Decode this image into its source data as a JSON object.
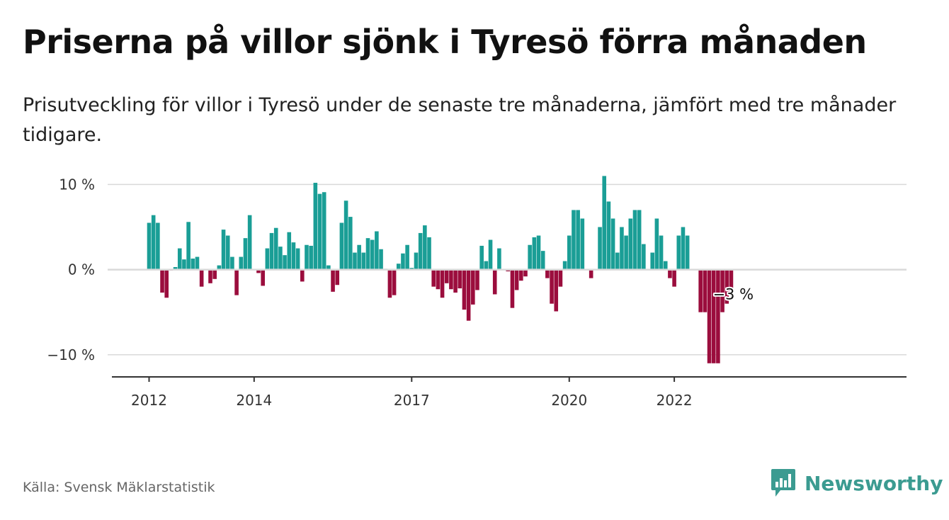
{
  "header": {
    "title": "Priserna på villor sjönk i Tyresö förra månaden",
    "subtitle": "Prisutveckling för villor i Tyresö under de senaste tre månaderna, jämfört med tre månader tidigare."
  },
  "footer": {
    "source": "Källa: Svensk Mäklarstatistik",
    "brand": "Newsworthy",
    "brand_icon": "bar-chart-logo-icon"
  },
  "colors": {
    "positive": "#1a9e96",
    "negative": "#9b0d3d",
    "grid": "#d9d9d9",
    "axis": "#333333",
    "brand": "#3b9b91"
  },
  "chart_data": {
    "type": "bar",
    "title": "",
    "xlabel": "",
    "ylabel": "",
    "ylim": [
      -12.6,
      11.2
    ],
    "yticks": [
      {
        "value": 10,
        "label": "10 %"
      },
      {
        "value": 0,
        "label": "0 %"
      },
      {
        "value": -10,
        "label": "−10 %"
      }
    ],
    "xticks": [
      {
        "value": "2012-01",
        "label": "2012"
      },
      {
        "value": "2014-01",
        "label": "2014"
      },
      {
        "value": "2017-01",
        "label": "2017"
      },
      {
        "value": "2020-01",
        "label": "2020"
      },
      {
        "value": "2022-01",
        "label": "2022"
      }
    ],
    "grid": true,
    "x_start": "2012-01",
    "series": [
      {
        "values": [
          5.5,
          6.4,
          5.5,
          -2.7,
          -3.3,
          -0.1,
          0.3,
          2.5,
          1.2,
          5.6,
          1.3,
          1.5,
          -2.0,
          0.0,
          -1.6,
          -1.1,
          0.5,
          4.7,
          4.0,
          1.5,
          -3.0,
          1.5,
          3.7,
          6.4,
          0.0,
          -0.4,
          -1.9,
          2.5,
          4.3,
          4.9,
          2.7,
          1.7,
          4.4,
          3.2,
          2.5,
          -1.4,
          2.9,
          2.8,
          10.2,
          8.9,
          9.1,
          0.5,
          -2.6,
          -1.8,
          5.5,
          8.1,
          6.2,
          2.0,
          2.9,
          2.0,
          3.7,
          3.5,
          4.5,
          2.4,
          0.1,
          -3.3,
          -3.0,
          0.7,
          1.9,
          2.9,
          0.2,
          2.0,
          4.3,
          5.2,
          3.8,
          -2.0,
          -2.3,
          -3.3,
          -1.6,
          -2.3,
          -2.7,
          -2.2,
          -4.7,
          -6.0,
          -4.1,
          -2.4,
          2.8,
          1.0,
          3.5,
          -2.9,
          2.5,
          0.0,
          -0.2,
          -4.5,
          -2.4,
          -1.3,
          -0.8,
          2.9,
          3.8,
          4.0,
          2.2,
          -1.0,
          -4.0,
          -4.9,
          -2.0,
          1.0,
          4.0,
          7.0,
          7.0,
          6.0,
          0.0,
          -1.0,
          0.0,
          5.0,
          11.0,
          8.0,
          6.0,
          2.0,
          5.0,
          4.0,
          6.0,
          7.0,
          7.0,
          3.0,
          0.0,
          2.0,
          6.0,
          4.0,
          1.0,
          -1.0,
          -2.0,
          4.0,
          5.0,
          4.0,
          0.0,
          0.0,
          -5.0,
          -5.0,
          -11.0,
          -11.0,
          -11.0,
          -5.0,
          -4.0,
          -3.0
        ]
      }
    ],
    "annotations": [
      {
        "x": "2023-02",
        "y": -3,
        "text": "−3 %"
      }
    ]
  }
}
